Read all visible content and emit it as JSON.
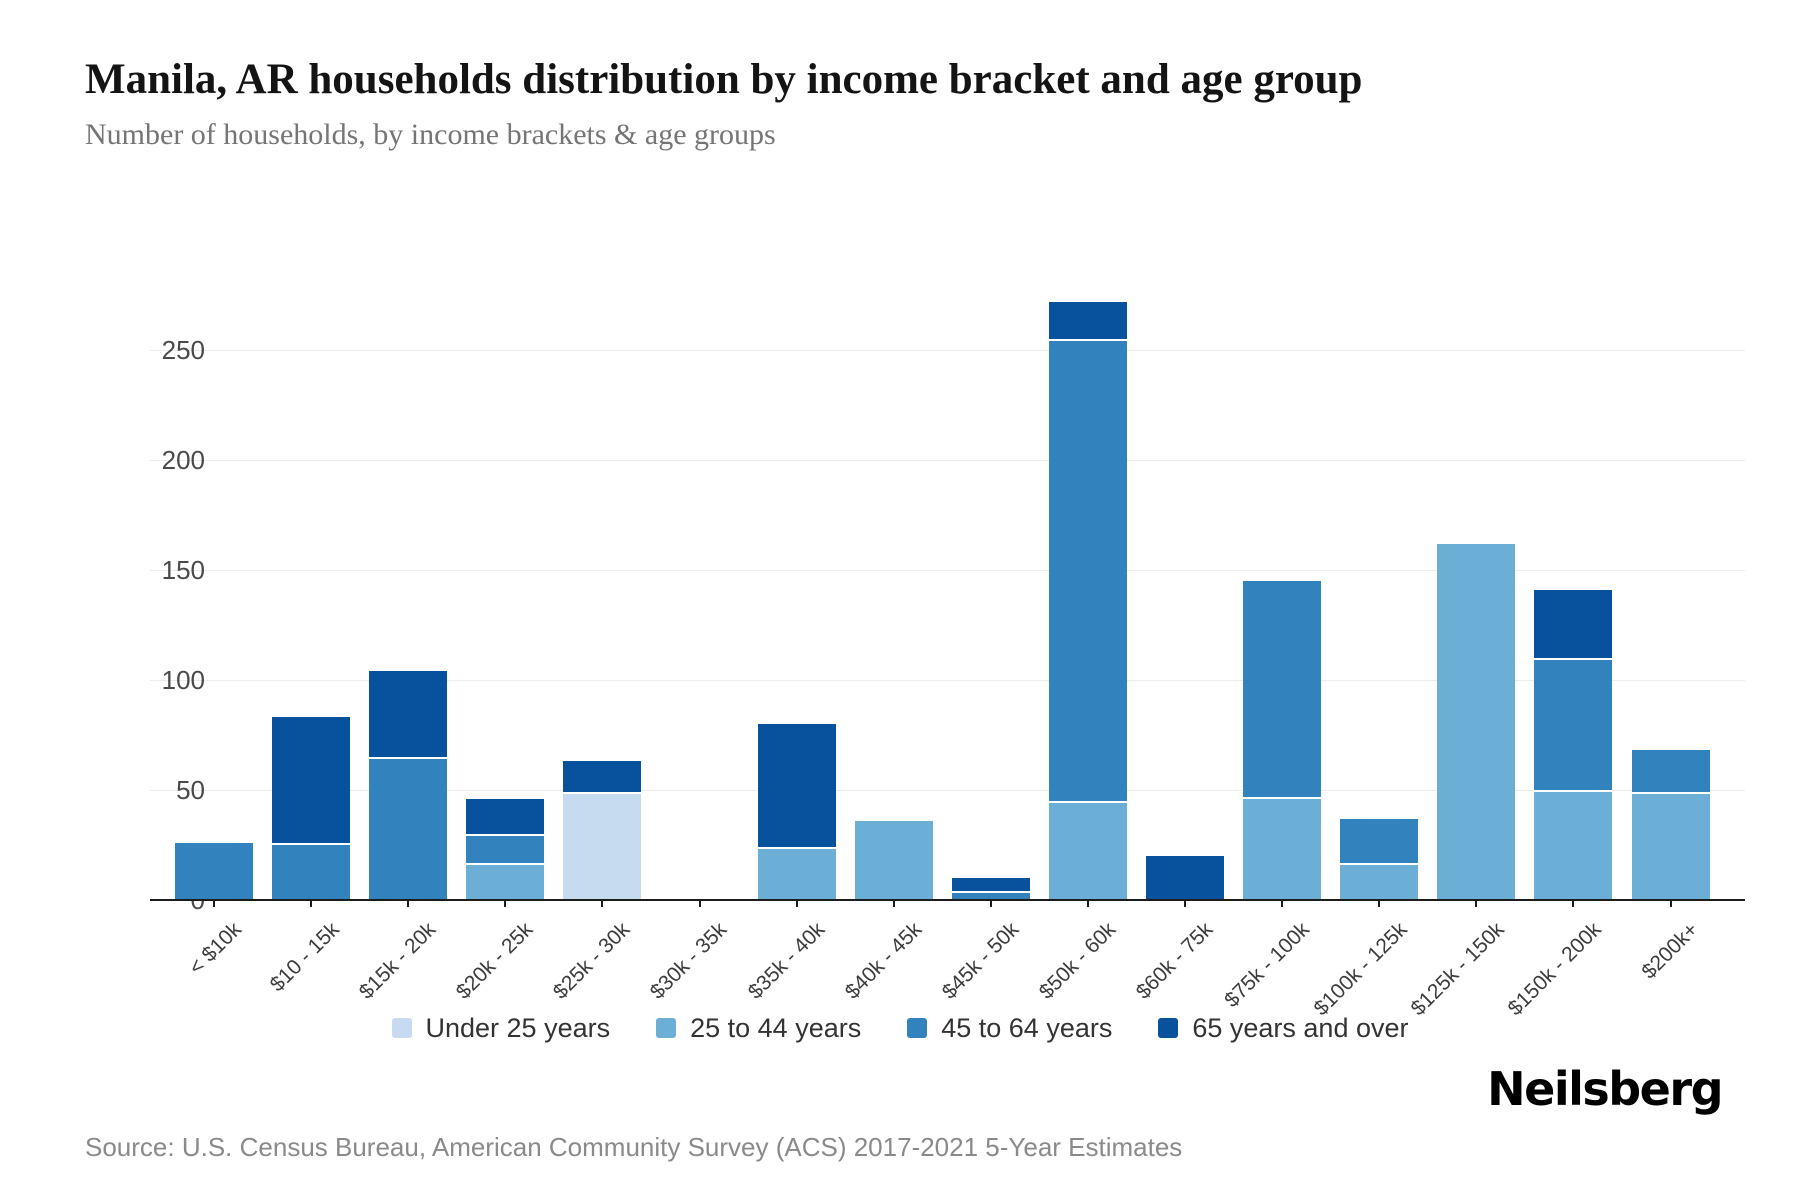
{
  "header": {
    "title": "Manila, AR households distribution by income bracket and age group",
    "subtitle": "Number of households, by income brackets & age groups"
  },
  "chart_data": {
    "type": "bar",
    "stacked": true,
    "categories": [
      "< $10k",
      "$10 - 15k",
      "$15k - 20k",
      "$20k - 25k",
      "$25k - 30k",
      "$30k - 35k",
      "$35k - 40k",
      "$40k - 45k",
      "$45k - 50k",
      "$50k - 60k",
      "$60k - 75k",
      "$75k - 100k",
      "$100k - 125k",
      "$125k - 150k",
      "$150k - 200k",
      "$200k+"
    ],
    "series": [
      {
        "name": "Under 25 years",
        "color": "#c6dbef",
        "values": [
          0,
          0,
          0,
          0,
          48,
          0,
          0,
          0,
          0,
          0,
          0,
          0,
          0,
          0,
          0,
          0
        ]
      },
      {
        "name": "25 to 44 years",
        "color": "#6baed6",
        "values": [
          0,
          0,
          0,
          16,
          0,
          0,
          23,
          36,
          0,
          44,
          0,
          46,
          16,
          162,
          49,
          48
        ]
      },
      {
        "name": "45 to 64 years",
        "color": "#3182bd",
        "values": [
          26,
          25,
          64,
          13,
          0,
          0,
          0,
          0,
          3,
          210,
          0,
          99,
          21,
          0,
          60,
          20
        ]
      },
      {
        "name": "65 years and over",
        "color": "#08519c",
        "values": [
          0,
          58,
          40,
          17,
          15,
          0,
          57,
          0,
          7,
          18,
          20,
          0,
          0,
          0,
          32,
          0
        ]
      }
    ],
    "totals": [
      26,
      83,
      104,
      46,
      63,
      0,
      80,
      36,
      10,
      272,
      20,
      145,
      37,
      162,
      141,
      68
    ],
    "yticks": [
      0,
      50,
      100,
      150,
      200,
      250
    ],
    "ylim": [
      0,
      275
    ],
    "grid": true,
    "legend_position": "bottom",
    "xlabel": "",
    "ylabel": ""
  },
  "footer": {
    "source": "Source: U.S. Census Bureau, American Community Survey (ACS) 2017-2021 5-Year Estimates",
    "logo": "Neilsberg"
  }
}
